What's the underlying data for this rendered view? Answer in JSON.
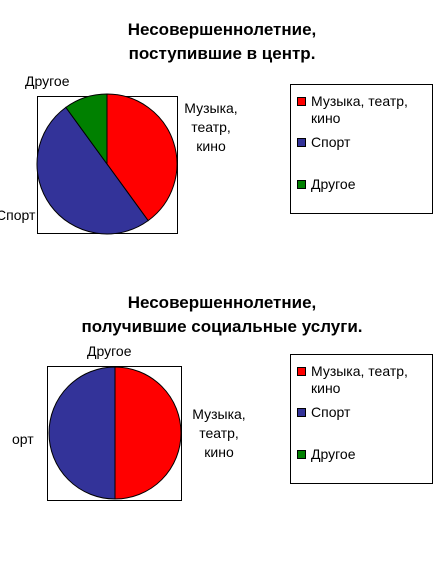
{
  "chart_data": [
    {
      "type": "pie",
      "title": [
        "Несовершеннолетние,",
        "поступившие в центр."
      ],
      "slices": [
        {
          "label": "Музыка, театр, кино",
          "value": 40,
          "color": "#ff0000"
        },
        {
          "label": "Спорт",
          "value": 50,
          "color": "#333399"
        },
        {
          "label": "Другое",
          "value": 10,
          "color": "#008000"
        }
      ],
      "data_labels": [
        {
          "lines": [
            "Музыка,",
            "театр,",
            "кино"
          ]
        },
        {
          "lines": [
            "Спорт"
          ]
        },
        {
          "lines": [
            "Другое"
          ]
        }
      ],
      "legend": {
        "placement": "right",
        "items": [
          {
            "lines": [
              "Музыка, театр,",
              "кино"
            ],
            "color": "#ff0000"
          },
          {
            "lines": [
              "Спорт"
            ],
            "color": "#333399"
          },
          {
            "lines": [
              "Другое"
            ],
            "color": "#008000"
          }
        ]
      }
    },
    {
      "type": "pie",
      "title": [
        "Несовершеннолетние,",
        "получившие социальные услуги."
      ],
      "slices": [
        {
          "label": "Музыка, театр, кино",
          "value": 50,
          "color": "#ff0000"
        },
        {
          "label": "Спорт",
          "value": 50,
          "color": "#333399"
        },
        {
          "label": "Другое",
          "value": 0,
          "color": "#008000"
        }
      ],
      "data_labels": [
        {
          "lines": [
            "Музыка,",
            "театр,",
            "кино"
          ]
        },
        {
          "lines": [
            "орт"
          ]
        },
        {
          "lines": [
            "Другое"
          ]
        }
      ],
      "legend": {
        "placement": "right",
        "items": [
          {
            "lines": [
              "Музыка, театр,",
              "кино"
            ],
            "color": "#ff0000"
          },
          {
            "lines": [
              "Спорт"
            ],
            "color": "#333399"
          },
          {
            "lines": [
              "Другое"
            ],
            "color": "#008000"
          }
        ]
      }
    }
  ]
}
